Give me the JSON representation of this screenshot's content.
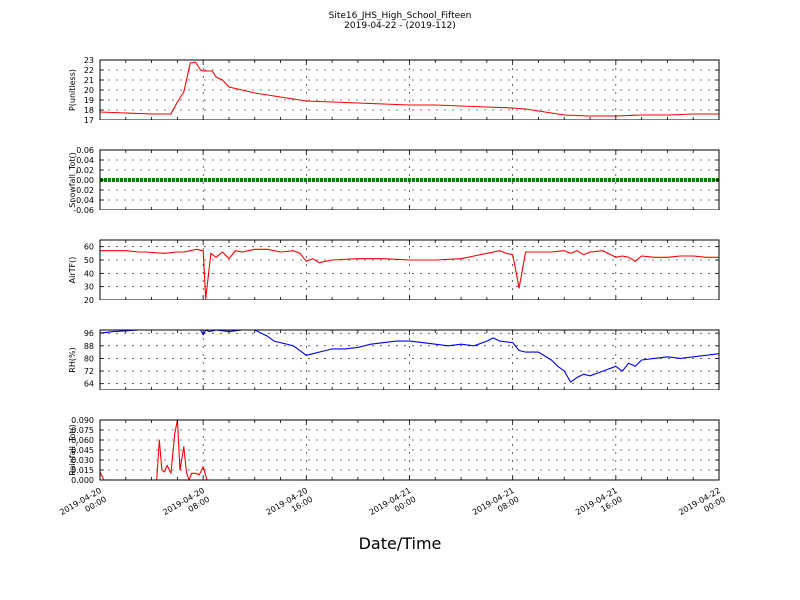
{
  "figure": {
    "title_line1": "Site16_JHS_High_School_Fifteen",
    "title_line2": "2019-04-22 - (2019-112)",
    "xlabel": "Date/Time"
  },
  "chart_data": [
    {
      "type": "line",
      "ylabel": "P(unitless)",
      "ylim": [
        17,
        23
      ],
      "yticks": [
        17,
        18,
        19,
        20,
        21,
        22,
        23
      ],
      "yticklabels": [
        "17",
        "18",
        "19",
        "20",
        "21",
        "22",
        "23"
      ],
      "color": "#ff0000",
      "grid": true,
      "x_hours": [
        0,
        2,
        4,
        5.5,
        6,
        6.5,
        7,
        7.4,
        7.8,
        8,
        8.4,
        8.7,
        9,
        9.5,
        10,
        11,
        12,
        14,
        16,
        18,
        20,
        22,
        24,
        26,
        28,
        30,
        32,
        33,
        34,
        36,
        38,
        40,
        42,
        44,
        46,
        48
      ],
      "values": [
        17.8,
        17.7,
        17.6,
        17.6,
        18.8,
        19.8,
        22.7,
        22.8,
        22.0,
        21.9,
        21.9,
        21.9,
        21.3,
        21.0,
        20.3,
        20.0,
        19.7,
        19.3,
        18.9,
        18.8,
        18.7,
        18.6,
        18.5,
        18.5,
        18.4,
        18.3,
        18.2,
        18.1,
        17.9,
        17.5,
        17.4,
        17.4,
        17.5,
        17.5,
        17.6,
        17.6
      ]
    },
    {
      "type": "line",
      "ylabel": "Snowfall_Tot()",
      "ylim": [
        -0.06,
        0.06
      ],
      "yticks": [
        -0.06,
        -0.04,
        -0.02,
        0.0,
        0.02,
        0.04,
        0.06
      ],
      "yticklabels": [
        "-0.06",
        "-0.04",
        "-0.02",
        "0.00",
        "0.02",
        "0.04",
        "0.06"
      ],
      "color": "#008000",
      "marker": "dot",
      "grid": true,
      "x_hours": [
        0,
        48
      ],
      "values": [
        0,
        0
      ]
    },
    {
      "type": "line",
      "ylabel": "AirTF()",
      "ylim": [
        20,
        65
      ],
      "yticks": [
        20,
        30,
        40,
        50,
        60
      ],
      "yticklabels": [
        "20",
        "30",
        "40",
        "50",
        "60"
      ],
      "color": "#ff0000",
      "grid": true,
      "x_hours": [
        0,
        2,
        3,
        3.5,
        5,
        6,
        6.5,
        7.5,
        8,
        8.2,
        8.6,
        9,
        9.5,
        10,
        10.5,
        11,
        12,
        13,
        14,
        15,
        15.5,
        16,
        16.5,
        17,
        18,
        20,
        22,
        24,
        26,
        28,
        29,
        30,
        31,
        31.5,
        32,
        32.5,
        33,
        35,
        36,
        36.5,
        37,
        37.5,
        38,
        39,
        40,
        40.5,
        41,
        41.5,
        42,
        43,
        44,
        45,
        46,
        47,
        48
      ],
      "values": [
        57,
        57,
        56,
        56,
        55,
        56,
        56,
        58,
        57,
        21,
        55,
        52,
        56,
        51,
        57,
        56,
        58,
        58,
        56,
        57,
        55,
        49,
        51,
        48,
        50,
        51,
        51,
        50,
        50,
        51,
        53,
        55,
        57,
        55,
        54,
        29,
        56,
        56,
        57,
        55,
        57,
        54,
        56,
        57,
        52,
        53,
        52,
        49,
        53,
        52,
        52,
        53,
        53,
        52,
        52
      ]
    },
    {
      "type": "line",
      "ylabel": "RH(%)",
      "ylim": [
        60,
        98
      ],
      "yticks": [
        64,
        72,
        80,
        88,
        96
      ],
      "yticklabels": [
        "64",
        "72",
        "80",
        "88",
        "96"
      ],
      "color": "#0000ff",
      "grid": true,
      "x_hours": [
        0,
        1,
        3,
        7.8,
        8,
        8.2,
        8.5,
        9,
        10,
        11,
        12,
        12.5,
        13,
        13.5,
        14,
        15,
        16,
        16.5,
        17,
        18,
        19,
        20,
        21,
        22,
        23,
        24,
        25,
        26,
        27,
        28,
        29,
        30,
        30.5,
        31,
        32,
        32.5,
        33,
        34,
        35,
        35.5,
        36,
        36.5,
        37,
        37.5,
        38,
        39,
        40,
        40.5,
        41,
        41.5,
        42,
        43,
        44,
        45,
        46,
        47,
        48
      ],
      "values": [
        96,
        97,
        98,
        98,
        95,
        98,
        97,
        98,
        97,
        98,
        98,
        96,
        94,
        91,
        90,
        88,
        82,
        83,
        84,
        86,
        86,
        87,
        89,
        90,
        91,
        91,
        90,
        89,
        88,
        89,
        88,
        91,
        93,
        91,
        90,
        85,
        84,
        84,
        79,
        75,
        72,
        65,
        68,
        70,
        69,
        72,
        75,
        72,
        77,
        75,
        79,
        80,
        81,
        80,
        81,
        82,
        83
      ]
    },
    {
      "type": "line",
      "ylabel": "Rainfall_Tot()",
      "ylim": [
        0,
        0.09
      ],
      "yticks": [
        0.0,
        0.015,
        0.03,
        0.045,
        0.06,
        0.075,
        0.09
      ],
      "yticklabels": [
        "0.000",
        "0.015",
        "0.030",
        "0.045",
        "0.060",
        "0.075",
        "0.090"
      ],
      "color": "#ff0000",
      "grid": true,
      "x_hours": [
        0,
        0.3,
        1,
        4,
        4.4,
        4.6,
        4.8,
        5.0,
        5.2,
        5.5,
        5.8,
        6.0,
        6.2,
        6.5,
        6.7,
        6.9,
        7.1,
        7.4,
        7.7,
        8.0,
        8.3,
        8.5,
        9,
        48
      ],
      "values": [
        0.012,
        0,
        0,
        0,
        0,
        0.06,
        0.015,
        0.012,
        0.022,
        0.01,
        0.07,
        0.09,
        0.015,
        0.05,
        0.012,
        0,
        0.01,
        0.01,
        0.008,
        0.02,
        0,
        0,
        0,
        0
      ]
    }
  ],
  "xaxis": {
    "range_hours": [
      0,
      48
    ],
    "tick_hours": [
      0,
      8,
      16,
      24,
      32,
      40,
      48
    ],
    "ticklabels": [
      [
        "2019-04-20",
        "00:00"
      ],
      [
        "2019-04-20",
        "08:00"
      ],
      [
        "2019-04-20",
        "16:00"
      ],
      [
        "2019-04-21",
        "00:00"
      ],
      [
        "2019-04-21",
        "08:00"
      ],
      [
        "2019-04-21",
        "16:00"
      ],
      [
        "2019-04-22",
        "00:00"
      ]
    ]
  }
}
